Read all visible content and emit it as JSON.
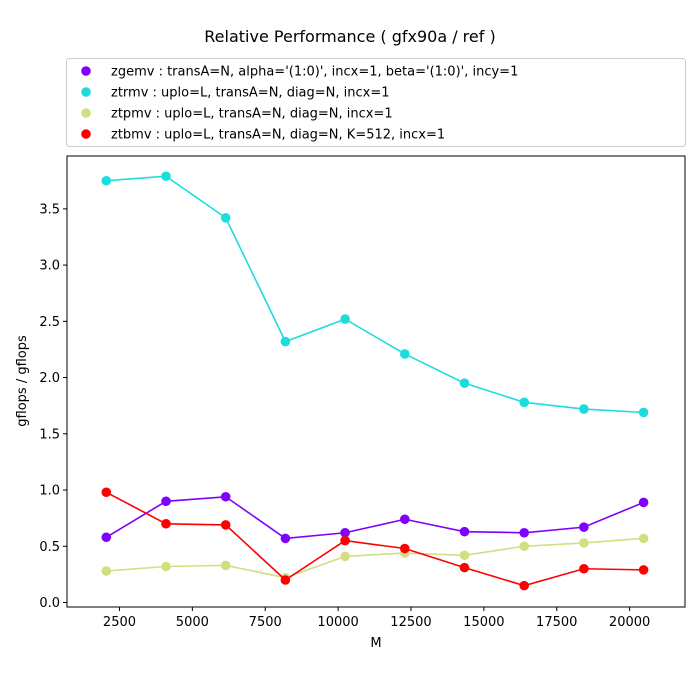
{
  "chart_data": {
    "type": "line",
    "title": "Relative Performance ( gfx90a /  ref )",
    "xlabel": "M",
    "ylabel": "gflops / gflops",
    "xlim": [
      700,
      21900
    ],
    "ylim": [
      -0.04,
      3.97
    ],
    "xticks": [
      2500,
      5000,
      7500,
      10000,
      12500,
      15000,
      17500,
      20000
    ],
    "xtick_labels": [
      "2500",
      "5000",
      "7500",
      "10000",
      "12500",
      "15000",
      "17500",
      "20000"
    ],
    "yticks": [
      0.0,
      0.5,
      1.0,
      1.5,
      2.0,
      2.5,
      3.0,
      3.5
    ],
    "ytick_labels": [
      "0.0",
      "0.5",
      "1.0",
      "1.5",
      "2.0",
      "2.5",
      "3.0",
      "3.5"
    ],
    "grid": false,
    "legend_position": "top",
    "x": [
      2048,
      4096,
      6144,
      8192,
      10240,
      12288,
      14336,
      16384,
      18432,
      20480
    ],
    "series": [
      {
        "name": "zgemv :  transA=N, alpha='(1:0)', incx=1, beta='(1:0)', incy=1",
        "color": "#8000ff",
        "values": [
          0.58,
          0.9,
          0.94,
          0.57,
          0.62,
          0.74,
          0.63,
          0.62,
          0.67,
          0.89
        ]
      },
      {
        "name": "ztrmv :  uplo=L, transA=N, diag=N, incx=1",
        "color": "#1cdddd",
        "values": [
          3.75,
          3.79,
          3.42,
          2.32,
          2.52,
          2.21,
          1.95,
          1.78,
          1.72,
          1.69
        ]
      },
      {
        "name": "ztpmv :  uplo=L, transA=N, diag=N, incx=1",
        "color": "#d4dd80",
        "values": [
          0.28,
          0.32,
          0.33,
          0.22,
          0.41,
          0.44,
          0.42,
          0.5,
          0.53,
          0.57
        ]
      },
      {
        "name": "ztbmv :  uplo=L, transA=N, diag=N, K=512, incx=1",
        "color": "#ff0000",
        "values": [
          0.98,
          0.7,
          0.69,
          0.2,
          0.55,
          0.48,
          0.31,
          0.15,
          0.3,
          0.29
        ]
      }
    ]
  }
}
